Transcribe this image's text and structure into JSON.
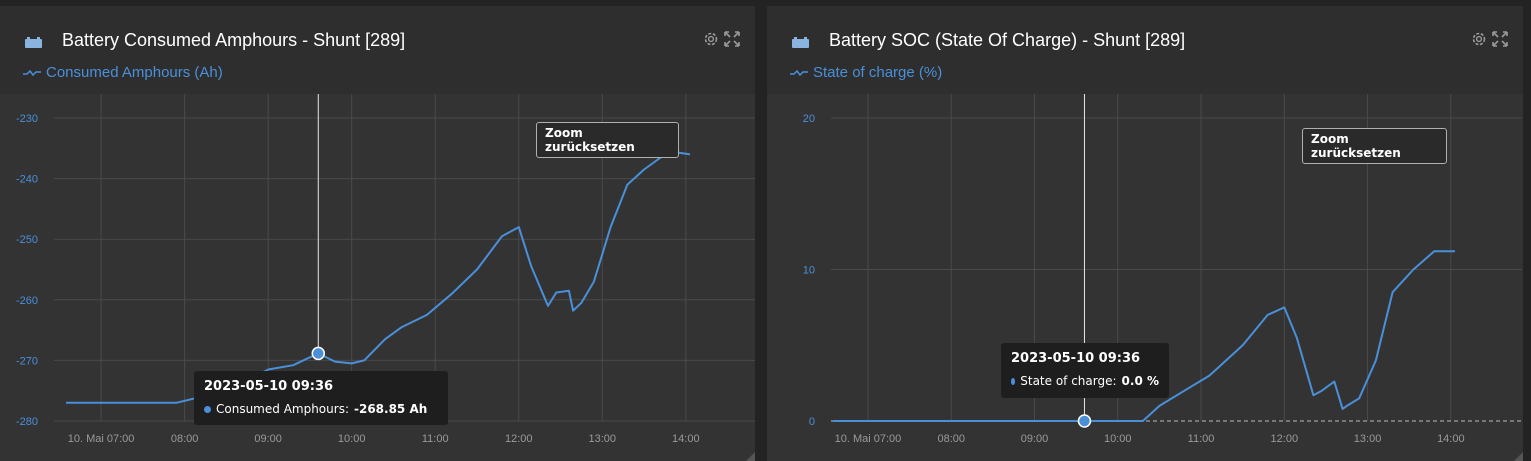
{
  "colors": {
    "accent": "#4a90d9",
    "grid": "#4a4a4a",
    "axis_text": "#9a9a9a",
    "y_text": "#4a90d9"
  },
  "panels": [
    {
      "title": "Battery Consumed Amphours - Shunt [289]",
      "icon": "battery-icon",
      "legend": "Consumed Amphours (Ah)",
      "zoom_label": "Zoom zurücksetzen",
      "tooltip": {
        "date": "2023-05-10 09:36",
        "label": "Consumed Amphours: ",
        "value": "-268.85 Ah"
      }
    },
    {
      "title": "Battery SOC (State Of Charge) - Shunt [289]",
      "icon": "battery-icon",
      "legend": "State of charge (%)",
      "zoom_label": "Zoom zurücksetzen",
      "tooltip": {
        "date": "2023-05-10 09:36",
        "label": "State of charge: ",
        "value": "0.0 %"
      }
    }
  ],
  "chart_data": [
    {
      "type": "line",
      "title": "Battery Consumed Amphours - Shunt [289]",
      "x_ticks": [
        "10. Mai 07:00",
        "08:00",
        "09:00",
        "10:00",
        "11:00",
        "12:00",
        "13:00",
        "14:00"
      ],
      "y_ticks": [
        "-230",
        "-240",
        "-250",
        "-260",
        "-270",
        "-280"
      ],
      "ylim": [
        -280,
        -230
      ],
      "x_range_hours": [
        6.58,
        14.05
      ],
      "grid": true,
      "series": [
        {
          "name": "Consumed Amphours (Ah)",
          "x": [
            6.58,
            7.0,
            7.5,
            7.9,
            8.05,
            8.5,
            9.0,
            9.3,
            9.6,
            9.8,
            10.0,
            10.15,
            10.4,
            10.6,
            10.9,
            11.2,
            11.5,
            11.8,
            12.0,
            12.15,
            12.35,
            12.45,
            12.6,
            12.65,
            12.75,
            12.9,
            13.1,
            13.3,
            13.5,
            13.8,
            14.05
          ],
          "y": [
            -277.0,
            -277.0,
            -277.0,
            -277.0,
            -276.5,
            -275.0,
            -271.5,
            -270.8,
            -268.85,
            -270.2,
            -270.5,
            -270.0,
            -266.5,
            -264.5,
            -262.5,
            -259.0,
            -255.0,
            -249.5,
            -248.0,
            -254.5,
            -261.0,
            -258.8,
            -258.5,
            -261.8,
            -260.5,
            -257.0,
            -248.0,
            -241.0,
            -238.5,
            -235.5,
            -236.0
          ]
        }
      ],
      "cursor": {
        "x": 9.6,
        "y": -268.85
      }
    },
    {
      "type": "line",
      "title": "Battery SOC (State Of Charge) - Shunt [289]",
      "x_ticks": [
        "10. Mai 07:00",
        "08:00",
        "09:00",
        "10:00",
        "11:00",
        "12:00",
        "13:00",
        "14:00"
      ],
      "y_ticks": [
        "20",
        "10",
        "0"
      ],
      "ylim": [
        0,
        20
      ],
      "x_range_hours": [
        6.58,
        14.05
      ],
      "grid": true,
      "series": [
        {
          "name": "State of charge (%)",
          "x": [
            6.58,
            7.0,
            8.0,
            9.0,
            9.6,
            10.0,
            10.3,
            10.5,
            10.8,
            11.1,
            11.5,
            11.8,
            12.0,
            12.15,
            12.35,
            12.45,
            12.6,
            12.7,
            12.75,
            12.9,
            13.1,
            13.3,
            13.55,
            13.8,
            14.05
          ],
          "y": [
            0.0,
            0.0,
            0.0,
            0.0,
            0.0,
            0.0,
            0.0,
            1.0,
            2.0,
            3.0,
            5.0,
            7.0,
            7.5,
            5.5,
            1.7,
            2.0,
            2.6,
            0.8,
            1.0,
            1.5,
            4.0,
            8.5,
            10.0,
            11.2,
            11.2
          ]
        }
      ],
      "cursor": {
        "x": 9.6,
        "y": 0.0
      }
    }
  ]
}
